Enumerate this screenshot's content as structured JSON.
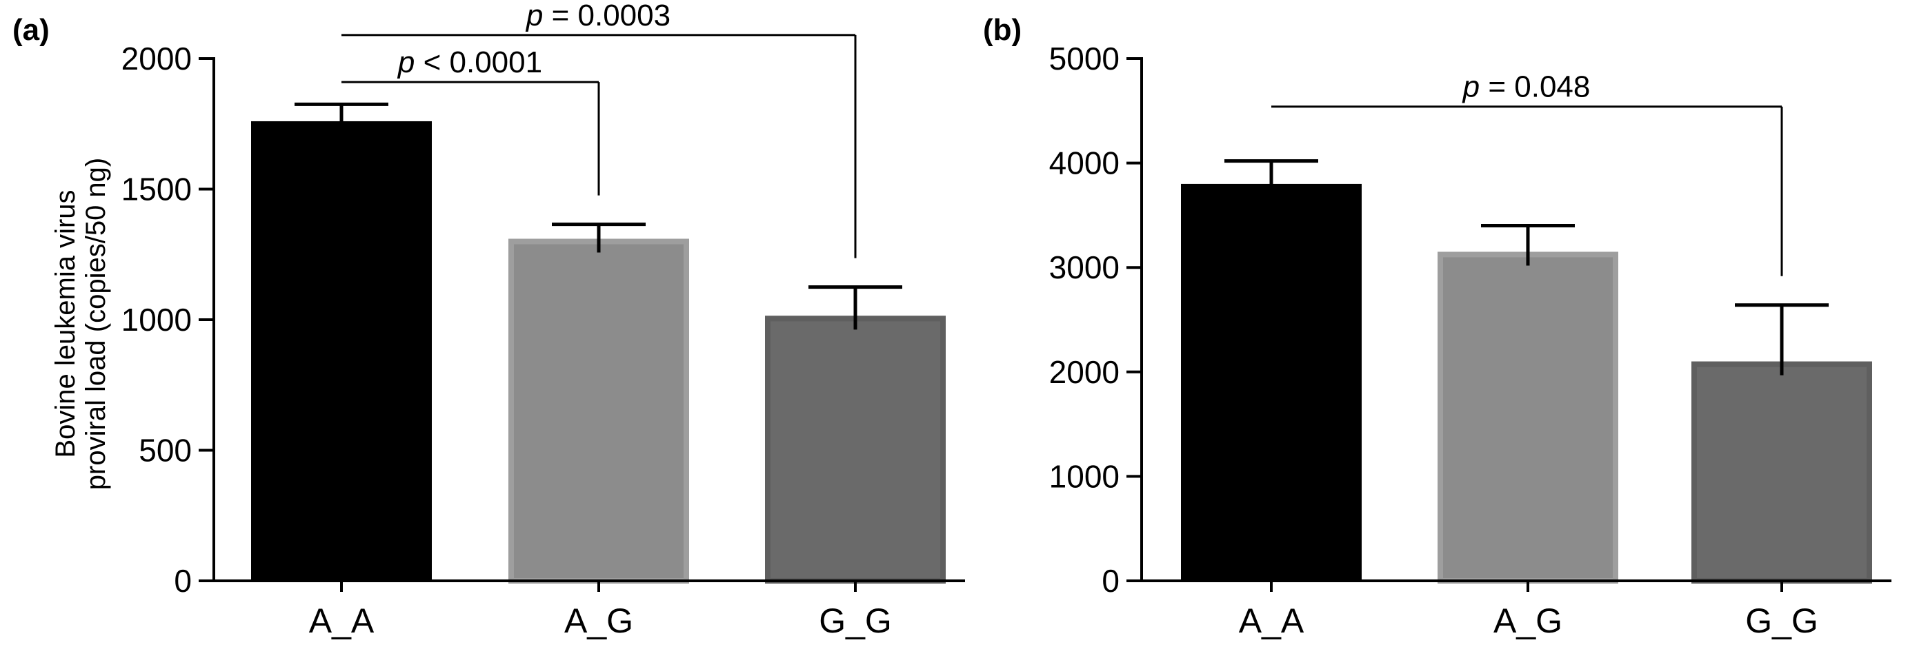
{
  "chart_data": [
    {
      "type": "bar",
      "panel_label": "(a)",
      "categories": [
        "A_A",
        "A_G",
        "G_G"
      ],
      "values": [
        1760,
        1310,
        1015
      ],
      "error_upper": [
        1825,
        1365,
        1125
      ],
      "bar_colors": [
        "#000000",
        "#8c8c8c",
        "#6a6a6a"
      ],
      "ylabel_lines": [
        "Bovine leukemia virus",
        "proviral load (copies/50 ng)"
      ],
      "ylim": [
        0,
        2000
      ],
      "yticks": [
        0,
        500,
        1000,
        1500,
        2000
      ],
      "comparisons": [
        {
          "from": "A_A",
          "to": "A_G",
          "p_symbol": "p",
          "p_text": " < 0.0001",
          "level": 1910
        },
        {
          "from": "A_A",
          "to": "G_G",
          "p_symbol": "p",
          "p_text": " = 0.0003",
          "level": 2090
        }
      ]
    },
    {
      "type": "bar",
      "panel_label": "(b)",
      "categories": [
        "A_A",
        "A_G",
        "G_G"
      ],
      "values": [
        3800,
        3150,
        2100
      ],
      "error_upper": [
        4020,
        3400,
        2640
      ],
      "bar_colors": [
        "#000000",
        "#8c8c8c",
        "#6a6a6a"
      ],
      "ylabel_lines": [],
      "ylim": [
        0,
        5000
      ],
      "yticks": [
        0,
        1000,
        2000,
        3000,
        4000,
        5000
      ],
      "comparisons": [
        {
          "from": "A_A",
          "to": "G_G",
          "p_symbol": "p",
          "p_text": " = 0.048",
          "level": 4540
        }
      ]
    }
  ]
}
